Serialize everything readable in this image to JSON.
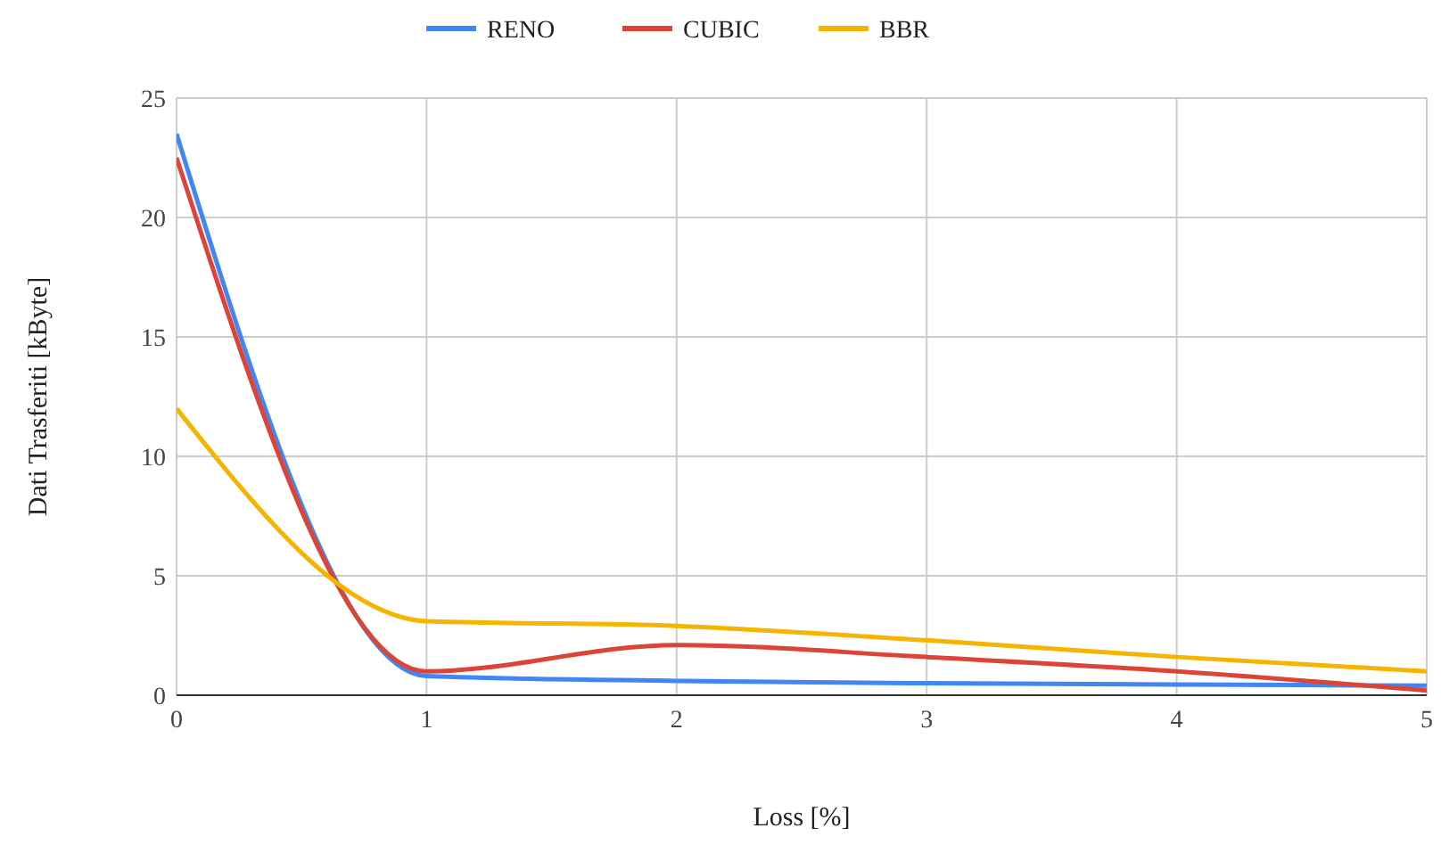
{
  "chart_data": {
    "type": "line",
    "xlabel": "Loss [%]",
    "ylabel": "Dati Trasferiti [kByte]",
    "x": [
      0,
      1,
      2,
      3,
      4,
      5
    ],
    "series": [
      {
        "name": "RENO",
        "color": "#4285f4",
        "values": [
          23.5,
          0.8,
          0.6,
          0.5,
          0.45,
          0.4
        ]
      },
      {
        "name": "CUBIC",
        "color": "#db4437",
        "values": [
          22.5,
          1,
          2.1,
          1.6,
          1,
          0.2
        ]
      },
      {
        "name": "BBR",
        "color": "#f4b400",
        "values": [
          12,
          3.1,
          2.9,
          2.3,
          1.6,
          1
        ]
      }
    ],
    "xlim": [
      0,
      5
    ],
    "xticks": [
      0,
      1,
      2,
      3,
      4,
      5
    ],
    "ylim": [
      0,
      25
    ],
    "yticks": [
      0,
      5,
      10,
      15,
      20,
      25
    ],
    "grid": true,
    "legend": "top",
    "marker": "none",
    "line_style": "solid"
  }
}
